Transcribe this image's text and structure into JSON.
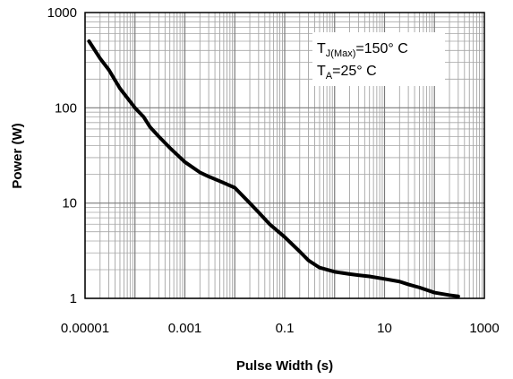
{
  "chart_data": {
    "type": "line",
    "x_scale": "log",
    "y_scale": "log",
    "xlim": [
      1e-05,
      1000
    ],
    "ylim": [
      1,
      1000
    ],
    "xlabel": "Pulse Width (s)",
    "ylabel": "Power (W)",
    "x_tick_labels": [
      "0.00001",
      "0.001",
      "0.1",
      "10",
      "1000"
    ],
    "y_tick_labels": [
      "1",
      "10",
      "100",
      "1000"
    ],
    "grid": true,
    "annotation": {
      "line1_main": "T",
      "line1_sub": "J(Max)",
      "line1_value": "=150° C",
      "line2_main": "T",
      "line2_sub": "A",
      "line2_value": "=25° C"
    },
    "series": [
      {
        "color": "#000000",
        "x": [
          1.2e-05,
          2e-05,
          3e-05,
          5e-05,
          0.0001,
          0.00015,
          0.0002,
          0.0003,
          0.0005,
          0.001,
          0.002,
          0.003,
          0.005,
          0.01,
          0.02,
          0.03,
          0.05,
          0.1,
          0.2,
          0.3,
          0.5,
          1,
          2,
          3,
          5,
          10,
          20,
          30,
          50,
          100,
          200,
          300
        ],
        "y": [
          500,
          330,
          250,
          160,
          100,
          80,
          63,
          50,
          38,
          27,
          21,
          19,
          17,
          14.5,
          10,
          8,
          6,
          4.4,
          3.1,
          2.5,
          2.1,
          1.9,
          1.8,
          1.75,
          1.7,
          1.6,
          1.5,
          1.4,
          1.3,
          1.15,
          1.08,
          1.05
        ]
      }
    ]
  }
}
